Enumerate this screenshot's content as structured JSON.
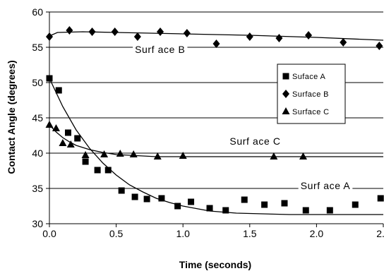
{
  "chart_data": {
    "type": "scatter",
    "xlabel": "Time (seconds)",
    "ylabel": "Contact Angle (degrees)",
    "xlim": [
      0,
      2.5
    ],
    "ylim": [
      30,
      60
    ],
    "xticks": [
      "0.0",
      "0.5",
      "1.0",
      "1.5",
      "2.0",
      "2.5"
    ],
    "yticks": [
      "30",
      "35",
      "40",
      "45",
      "50",
      "55",
      "60"
    ],
    "grid": "horizontal",
    "legend_position": "right",
    "series": [
      {
        "name": "Suface A",
        "marker": "square",
        "points": [
          [
            0.0,
            50.6
          ],
          [
            0.07,
            48.9
          ],
          [
            0.14,
            42.9
          ],
          [
            0.21,
            42.1
          ],
          [
            0.27,
            38.8
          ],
          [
            0.36,
            37.6
          ],
          [
            0.44,
            37.6
          ],
          [
            0.54,
            34.7
          ],
          [
            0.64,
            33.8
          ],
          [
            0.73,
            33.5
          ],
          [
            0.84,
            33.6
          ],
          [
            0.96,
            32.5
          ],
          [
            1.06,
            33.1
          ],
          [
            1.2,
            32.2
          ],
          [
            1.32,
            31.9
          ],
          [
            1.46,
            33.4
          ],
          [
            1.61,
            32.7
          ],
          [
            1.76,
            32.9
          ],
          [
            1.92,
            31.9
          ],
          [
            2.1,
            31.9
          ],
          [
            2.29,
            32.7
          ],
          [
            2.48,
            33.6
          ]
        ],
        "fit": [
          [
            0.0,
            50.6
          ],
          [
            0.1,
            46.6
          ],
          [
            0.2,
            43.3
          ],
          [
            0.3,
            40.7
          ],
          [
            0.4,
            38.6
          ],
          [
            0.5,
            36.9
          ],
          [
            0.6,
            35.5
          ],
          [
            0.7,
            34.5
          ],
          [
            0.8,
            33.6
          ],
          [
            0.9,
            33.0
          ],
          [
            1.0,
            32.5
          ],
          [
            1.2,
            31.8
          ],
          [
            1.4,
            31.5
          ],
          [
            1.6,
            31.4
          ],
          [
            1.8,
            31.3
          ],
          [
            2.0,
            31.3
          ],
          [
            2.5,
            31.3
          ]
        ]
      },
      {
        "name": "Surface B",
        "marker": "diamond",
        "points": [
          [
            0.0,
            56.5
          ],
          [
            0.15,
            57.4
          ],
          [
            0.32,
            57.2
          ],
          [
            0.49,
            57.2
          ],
          [
            0.66,
            56.5
          ],
          [
            0.83,
            57.2
          ],
          [
            1.03,
            57.0
          ],
          [
            1.25,
            55.5
          ],
          [
            1.5,
            56.5
          ],
          [
            1.72,
            56.3
          ],
          [
            1.94,
            56.7
          ],
          [
            2.2,
            55.7
          ],
          [
            2.47,
            55.2
          ]
        ],
        "fit": [
          [
            0.0,
            56.6
          ],
          [
            0.06,
            57.1
          ],
          [
            0.25,
            57.2
          ],
          [
            0.5,
            57.1
          ],
          [
            1.0,
            56.9
          ],
          [
            1.5,
            56.7
          ],
          [
            2.0,
            56.4
          ],
          [
            2.5,
            56.0
          ]
        ]
      },
      {
        "name": "Surface C",
        "marker": "triangle",
        "points": [
          [
            0.0,
            44.0
          ],
          [
            0.05,
            43.5
          ],
          [
            0.1,
            41.4
          ],
          [
            0.16,
            41.2
          ],
          [
            0.27,
            39.7
          ],
          [
            0.41,
            39.8
          ],
          [
            0.53,
            39.9
          ],
          [
            0.63,
            39.8
          ],
          [
            0.81,
            39.5
          ],
          [
            1.0,
            39.6
          ],
          [
            1.68,
            39.5
          ],
          [
            1.9,
            39.5
          ]
        ],
        "fit": [
          [
            0.0,
            44.0
          ],
          [
            0.05,
            43.0
          ],
          [
            0.1,
            42.2
          ],
          [
            0.15,
            41.6
          ],
          [
            0.2,
            41.1
          ],
          [
            0.3,
            40.5
          ],
          [
            0.4,
            40.1
          ],
          [
            0.5,
            39.8
          ],
          [
            0.6,
            39.7
          ],
          [
            0.8,
            39.5
          ],
          [
            1.0,
            39.5
          ],
          [
            1.5,
            39.5
          ],
          [
            2.0,
            39.5
          ],
          [
            2.5,
            39.5
          ]
        ]
      }
    ],
    "annotations": [
      {
        "text": "Surf ace B",
        "x": 0.64,
        "y": 54.2
      },
      {
        "text": "Surf ace C",
        "x": 1.35,
        "y": 41.2
      },
      {
        "text": "Surf ace A",
        "x": 1.88,
        "y": 34.9
      }
    ],
    "legend": [
      {
        "label": "Suface A",
        "marker": "square"
      },
      {
        "label": "Surface B",
        "marker": "diamond"
      },
      {
        "label": "Surface C",
        "marker": "triangle"
      }
    ]
  }
}
